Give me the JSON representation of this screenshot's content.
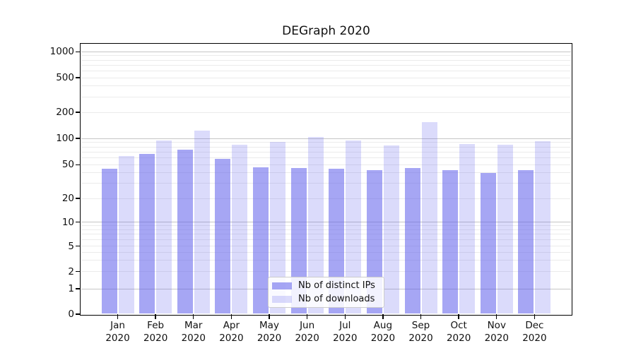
{
  "title": "DEGraph 2020",
  "chart_data": {
    "type": "bar",
    "title": "DEGraph 2020",
    "x_categories_line1": [
      "Jan",
      "Feb",
      "Mar",
      "Apr",
      "May",
      "Jun",
      "Jul",
      "Aug",
      "Sep",
      "Oct",
      "Nov",
      "Dec"
    ],
    "x_year": "2020",
    "series": [
      {
        "name": "Nb of distinct IPs",
        "color": "rgba(92,92,235,0.55)",
        "values": [
          45,
          66,
          74,
          58,
          47,
          46,
          45,
          43,
          46,
          43,
          40,
          43
        ]
      },
      {
        "name": "Nb of downloads",
        "color": "rgba(92,92,235,0.22)",
        "values": [
          63,
          94,
          123,
          85,
          91,
          104,
          94,
          83,
          155,
          86,
          85,
          92
        ]
      }
    ],
    "yticks": [
      0,
      1,
      2,
      5,
      10,
      20,
      50,
      100,
      200,
      500,
      1000
    ],
    "yscale": "log-like (0 at baseline, decades 1-10-100-1000)",
    "ylim": [
      0,
      1300
    ],
    "grid": true,
    "legend_position": "lower center"
  },
  "legend": {
    "items": [
      {
        "label": "Nb of distinct IPs"
      },
      {
        "label": "Nb of downloads"
      }
    ]
  },
  "colors": {
    "bar_base": "#5c5ceb",
    "major_grid": "#c6c6c6",
    "minor_grid": "#ebebeb",
    "axis": "#000000",
    "text": "#111111"
  }
}
